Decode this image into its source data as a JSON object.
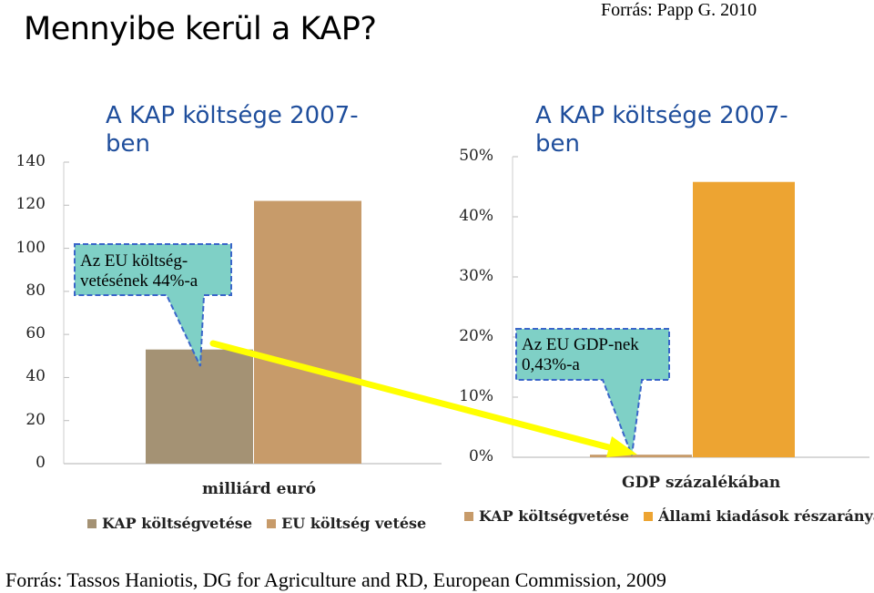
{
  "page": {
    "title": "Mennyibe kerül a KAP?",
    "source_top": "Forrás: Papp G. 2010",
    "source_bottom": "Forrás: Tassos Haniotis, DG for Agriculture and RD, European Commission, 2009"
  },
  "colors": {
    "kap": "#a49274",
    "eu": "#c79b6a",
    "kap_right": "#c79b6a",
    "allami": "#eda432",
    "callout": "#7fd0c6",
    "callout_border": "#3a66c9",
    "arrow": "#ffff00",
    "title_blue": "#1f4e9c"
  },
  "chart_data": [
    {
      "type": "bar",
      "title": "A KAP költsége 2007-ben",
      "title_line1": "A KAP költsége 2007-",
      "title_line2": "ben",
      "categories": [
        "milliárd euró"
      ],
      "xlabel": "milliárd euró",
      "ylim": [
        0,
        140
      ],
      "yticks": [
        "0",
        "20",
        "40",
        "60",
        "80",
        "100",
        "120",
        "140"
      ],
      "series": [
        {
          "name": "KAP költségvetése",
          "values": [
            53
          ]
        },
        {
          "name": "EU költség vetése",
          "values": [
            122
          ]
        }
      ],
      "legend": [
        "KAP költségvetése",
        "EU költség vetése"
      ],
      "annotation_line1": "Az EU költség-",
      "annotation_line2": "vetésének 44%-a"
    },
    {
      "type": "bar",
      "title": "A KAP költsége 2007-ben",
      "title_line1": "A KAP költsége 2007-",
      "title_line2": "ben",
      "categories": [
        "GDP százalékában"
      ],
      "xlabel": "GDP százalékában",
      "ylim": [
        0,
        50
      ],
      "yticks": [
        "0%",
        "10%",
        "20%",
        "30%",
        "40%",
        "50%"
      ],
      "series": [
        {
          "name": "KAP költségvetése",
          "values": [
            0.43
          ]
        },
        {
          "name": "Állami kiadások részaránya",
          "values": [
            45.8
          ]
        }
      ],
      "legend": [
        "KAP költségvetése",
        "Állami kiadások részaránya"
      ],
      "annotation_line1": "Az EU GDP-nek",
      "annotation_line2": "0,43%-a"
    }
  ]
}
